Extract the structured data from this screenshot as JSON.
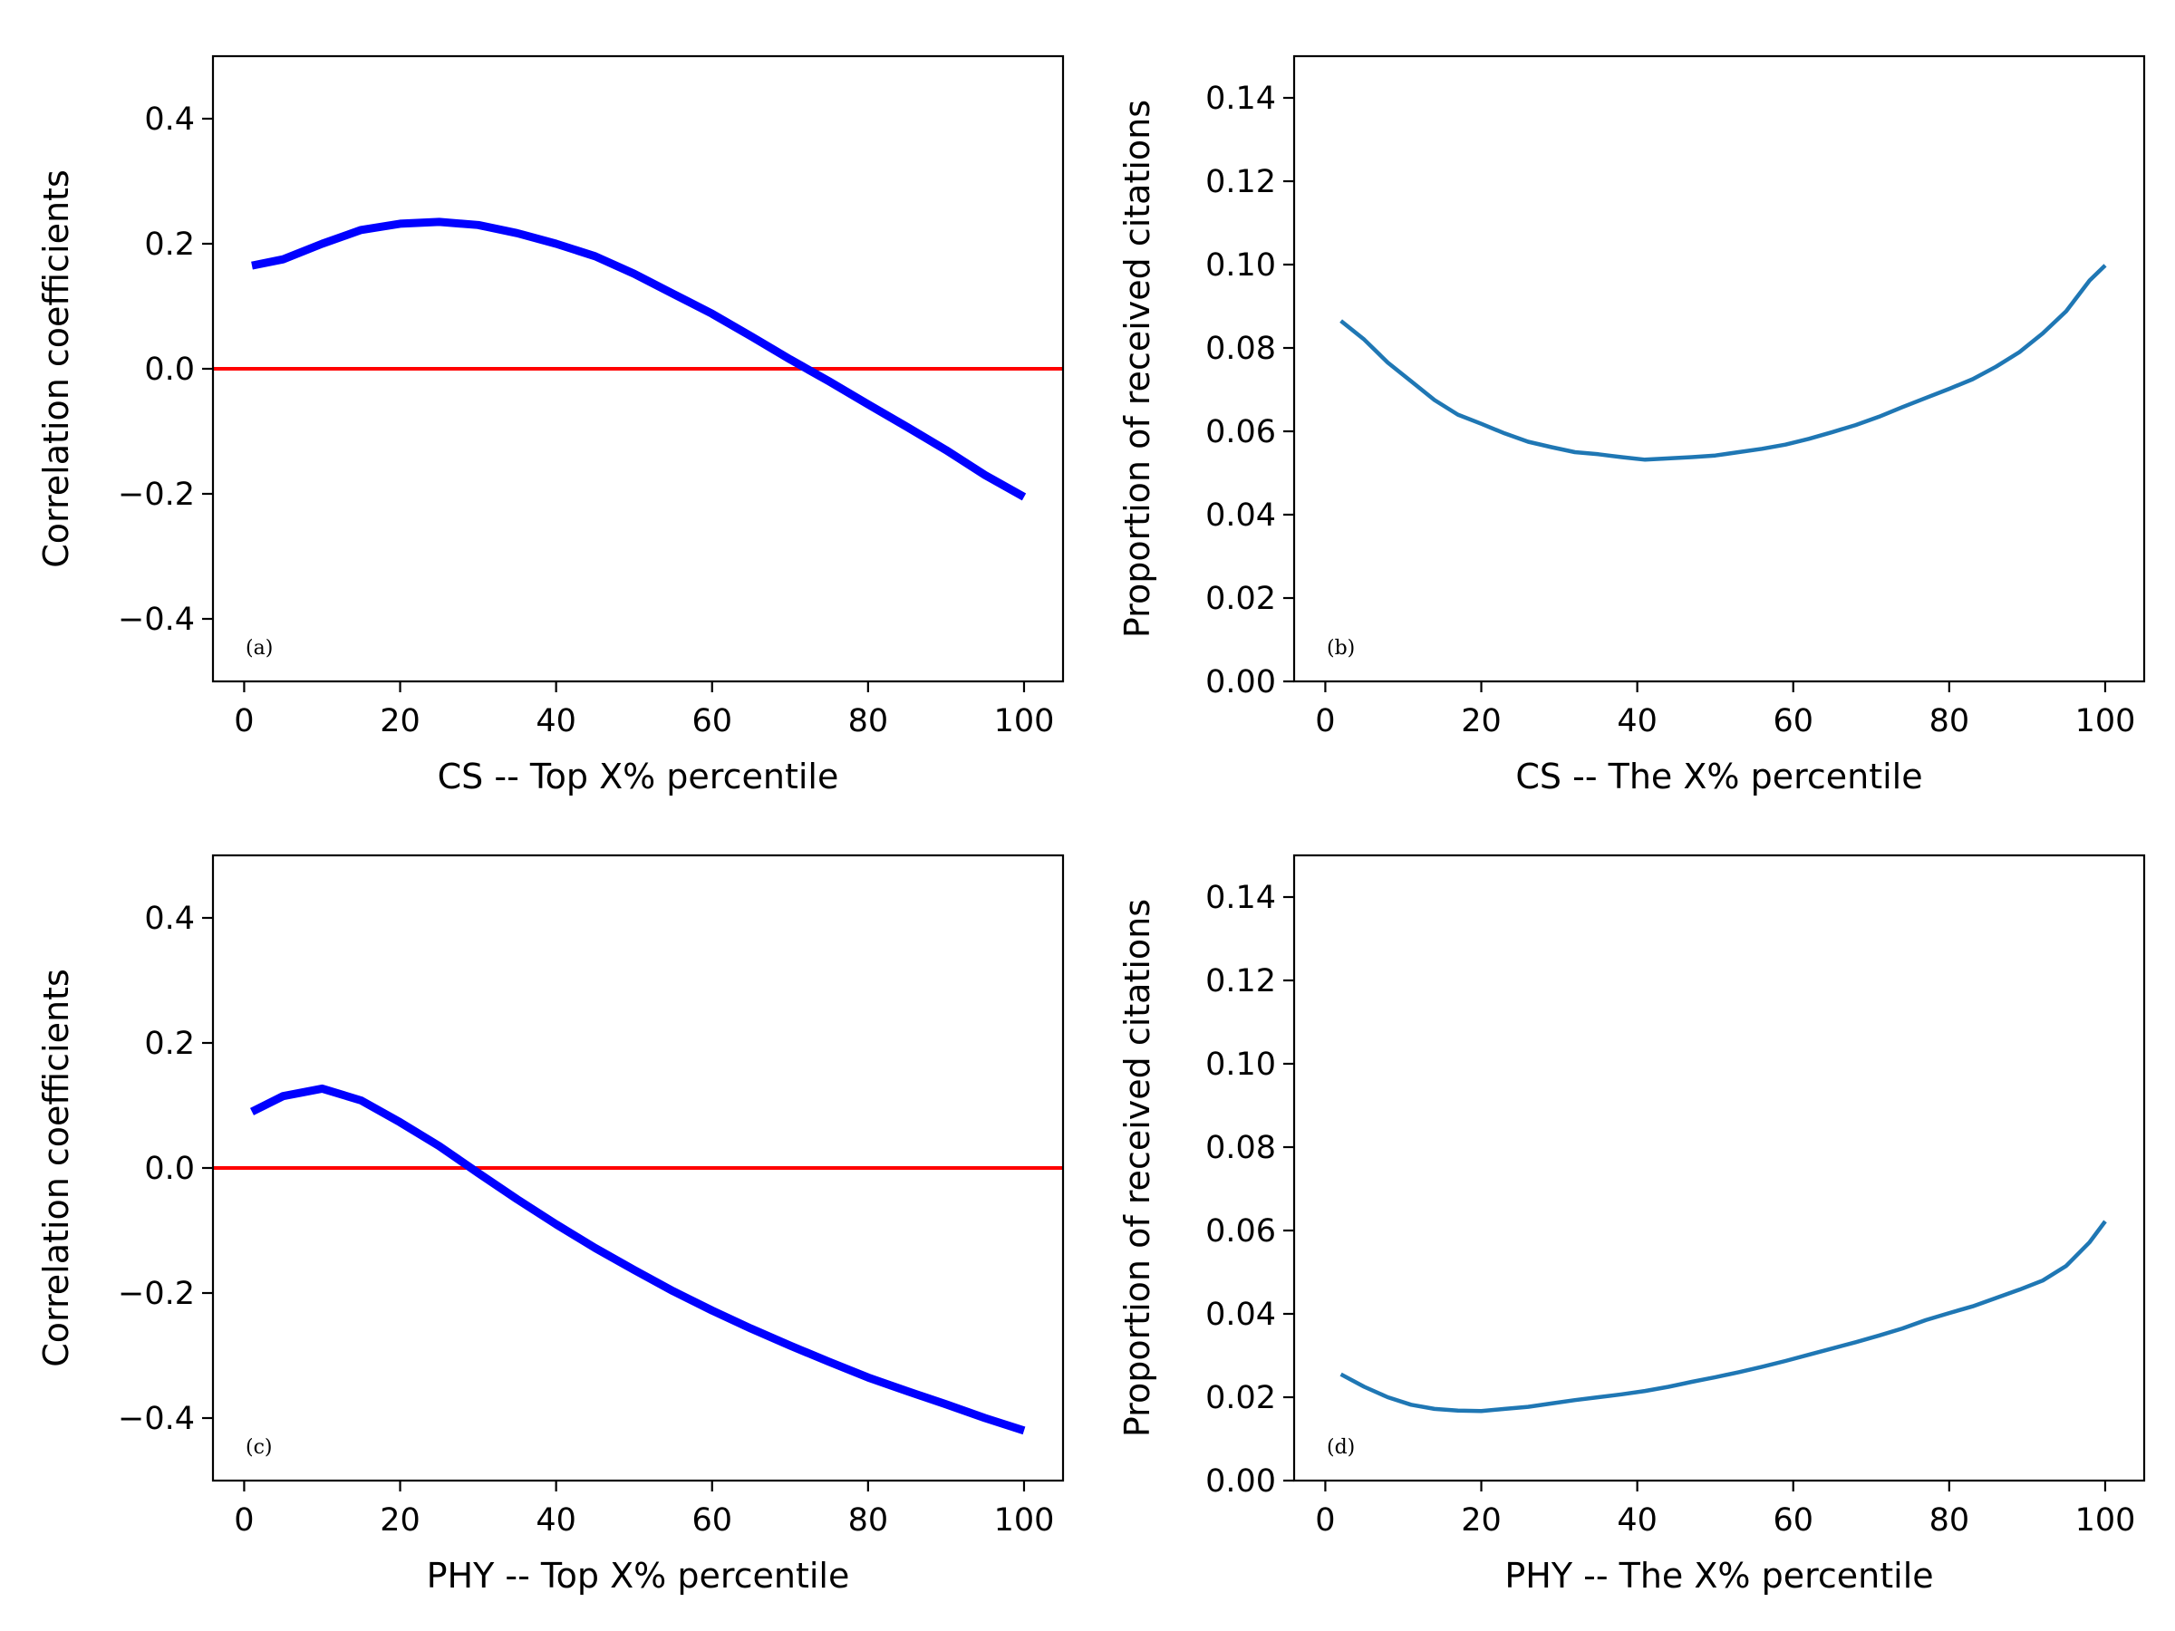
{
  "chart_data": [
    {
      "id": "a",
      "type": "line",
      "panel_label": "(a)",
      "xlabel": "CS -- Top X% percentile",
      "ylabel": "Correlation coefficients",
      "xlim": [
        -4,
        105
      ],
      "ylim": [
        -0.5,
        0.5
      ],
      "xticks": [
        0,
        20,
        40,
        60,
        80,
        100
      ],
      "yticks": [
        -0.4,
        -0.2,
        0.0,
        0.2,
        0.4
      ],
      "ytick_labels": [
        "−0.4",
        "−0.2",
        "0.0",
        "0.2",
        "0.4"
      ],
      "grid": false,
      "reference_line": {
        "y": 0.0,
        "color": "#ff0000"
      },
      "series": [
        {
          "color": "#0000ff",
          "x": [
            1,
            5,
            10,
            15,
            20,
            25,
            30,
            35,
            40,
            45,
            50,
            55,
            60,
            65,
            70,
            75,
            80,
            85,
            90,
            95,
            100
          ],
          "y": [
            0.165,
            0.175,
            0.2,
            0.222,
            0.232,
            0.235,
            0.23,
            0.217,
            0.2,
            0.18,
            0.152,
            0.12,
            0.088,
            0.052,
            0.015,
            -0.02,
            -0.057,
            -0.093,
            -0.13,
            -0.17,
            -0.205
          ]
        }
      ]
    },
    {
      "id": "b",
      "type": "line",
      "panel_label": "(b)",
      "xlabel": "CS -- The X% percentile",
      "ylabel": "Proportion of received citations",
      "xlim": [
        -4,
        105
      ],
      "ylim": [
        0,
        0.15
      ],
      "xticks": [
        0,
        20,
        40,
        60,
        80,
        100
      ],
      "yticks": [
        0.0,
        0.02,
        0.04,
        0.06,
        0.08,
        0.1,
        0.12,
        0.14
      ],
      "ytick_labels": [
        "0.00",
        "0.02",
        "0.04",
        "0.06",
        "0.08",
        "0.10",
        "0.12",
        "0.14"
      ],
      "grid": false,
      "series": [
        {
          "color": "#1f77b4",
          "x": [
            2,
            5,
            8,
            11,
            14,
            17,
            20,
            23,
            26,
            29,
            32,
            35,
            38,
            41,
            44,
            47,
            50,
            53,
            56,
            59,
            62,
            65,
            68,
            71,
            74,
            77,
            80,
            83,
            86,
            89,
            92,
            95,
            98,
            100
          ],
          "y": [
            0.0865,
            0.082,
            0.0765,
            0.072,
            0.0675,
            0.064,
            0.0618,
            0.0595,
            0.0575,
            0.0562,
            0.055,
            0.0545,
            0.0538,
            0.0532,
            0.0535,
            0.0538,
            0.0542,
            0.055,
            0.0558,
            0.0568,
            0.0582,
            0.0598,
            0.0615,
            0.0635,
            0.0658,
            0.068,
            0.0702,
            0.0725,
            0.0755,
            0.079,
            0.0835,
            0.0888,
            0.0962,
            0.0998
          ]
        }
      ]
    },
    {
      "id": "c",
      "type": "line",
      "panel_label": "(c)",
      "xlabel": "PHY -- Top X% percentile",
      "ylabel": "Correlation coefficients",
      "xlim": [
        -4,
        105
      ],
      "ylim": [
        -0.5,
        0.5
      ],
      "xticks": [
        0,
        20,
        40,
        60,
        80,
        100
      ],
      "yticks": [
        -0.4,
        -0.2,
        0.0,
        0.2,
        0.4
      ],
      "ytick_labels": [
        "−0.4",
        "−0.2",
        "0.0",
        "0.2",
        "0.4"
      ],
      "grid": false,
      "reference_line": {
        "y": 0.0,
        "color": "#ff0000"
      },
      "series": [
        {
          "color": "#0000ff",
          "x": [
            1,
            5,
            10,
            15,
            20,
            25,
            30,
            35,
            40,
            45,
            50,
            55,
            60,
            65,
            70,
            75,
            80,
            85,
            90,
            95,
            100
          ],
          "y": [
            0.09,
            0.115,
            0.127,
            0.108,
            0.073,
            0.035,
            -0.008,
            -0.05,
            -0.09,
            -0.128,
            -0.163,
            -0.197,
            -0.228,
            -0.257,
            -0.284,
            -0.31,
            -0.335,
            -0.357,
            -0.378,
            -0.4,
            -0.42
          ]
        }
      ]
    },
    {
      "id": "d",
      "type": "line",
      "panel_label": "(d)",
      "xlabel": "PHY -- The X% percentile",
      "ylabel": "Proportion of received citations",
      "xlim": [
        -4,
        105
      ],
      "ylim": [
        0,
        0.15
      ],
      "xticks": [
        0,
        20,
        40,
        60,
        80,
        100
      ],
      "yticks": [
        0.0,
        0.02,
        0.04,
        0.06,
        0.08,
        0.1,
        0.12,
        0.14
      ],
      "ytick_labels": [
        "0.00",
        "0.02",
        "0.04",
        "0.06",
        "0.08",
        "0.10",
        "0.12",
        "0.14"
      ],
      "grid": false,
      "series": [
        {
          "color": "#1f77b4",
          "x": [
            2,
            5,
            8,
            11,
            14,
            17,
            20,
            23,
            26,
            29,
            32,
            35,
            38,
            41,
            44,
            47,
            50,
            53,
            56,
            59,
            62,
            65,
            68,
            71,
            74,
            77,
            80,
            83,
            86,
            89,
            92,
            95,
            98,
            100
          ],
          "y": [
            0.0255,
            0.0225,
            0.02,
            0.0182,
            0.0172,
            0.0168,
            0.0167,
            0.0172,
            0.0177,
            0.0185,
            0.0193,
            0.02,
            0.0207,
            0.0215,
            0.0225,
            0.0237,
            0.0248,
            0.026,
            0.0273,
            0.0287,
            0.0302,
            0.0317,
            0.0332,
            0.0348,
            0.0365,
            0.0385,
            0.0402,
            0.0418,
            0.0438,
            0.0458,
            0.048,
            0.0515,
            0.0572,
            0.0622
          ]
        }
      ]
    }
  ]
}
